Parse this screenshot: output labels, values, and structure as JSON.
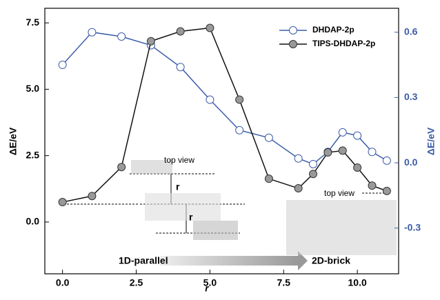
{
  "chart_data": {
    "type": "line",
    "x": [
      0,
      1,
      2,
      3,
      4,
      5,
      6,
      7,
      8,
      8.5,
      9,
      9.5,
      10,
      10.5,
      11
    ],
    "series": [
      {
        "name": "DHDAP-2p",
        "color": "#3a5ba8",
        "axis": "y2",
        "marker": "open",
        "values": [
          0.45,
          0.6,
          0.58,
          0.54,
          0.44,
          0.29,
          0.15,
          0.115,
          0.02,
          -0.006,
          0.05,
          0.14,
          0.125,
          0.05,
          0.01
        ]
      },
      {
        "name": "TIPS-DHDAP-2p",
        "color": "#111111",
        "marker": "filled",
        "values": [
          0.75,
          0.98,
          2.07,
          6.81,
          7.18,
          7.31,
          4.61,
          1.63,
          1.27,
          1.81,
          2.62,
          2.69,
          2.05,
          1.37,
          1.17
        ]
      }
    ],
    "xlabel": "r",
    "ylabel": "ΔE/eV",
    "y2label": "ΔE/eV",
    "xlim": [
      -0.6,
      11.4
    ],
    "ylim": [
      -1.95,
      8.05
    ],
    "y2lim": [
      -0.51,
      0.71
    ],
    "xticks": [
      {
        "value": 0,
        "label": "0.0"
      },
      2.5,
      {
        "value": 5,
        "label": "5.0"
      },
      7.5,
      {
        "value": 10,
        "label": "10.0"
      }
    ],
    "yticks": [
      {
        "value": 0,
        "label": "0.0"
      },
      2.5,
      {
        "value": 5,
        "label": "5.0"
      },
      7.5
    ],
    "y2ticks": [
      -0.3,
      {
        "value": 0,
        "label": "0.0"
      },
      0.3,
      0.6
    ],
    "legend": "upper right",
    "annotations": [
      "top view",
      "r",
      "r",
      "top view",
      "1D-parallel",
      "2D-brick"
    ]
  }
}
